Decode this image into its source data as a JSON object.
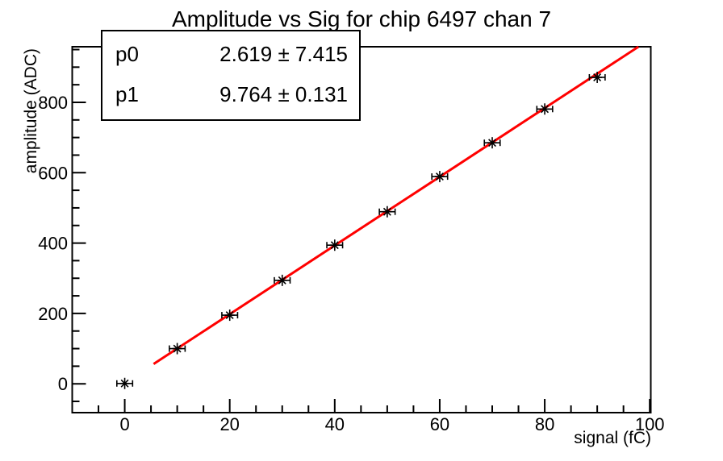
{
  "page": {
    "background": "#ffffff"
  },
  "header": {
    "title": "Amplitude vs Sig for chip 6497 chan 7"
  },
  "stats_box": {
    "rows": [
      {
        "label": "p0",
        "value": "2.619 ± 7.415"
      },
      {
        "label": "p1",
        "value": "9.764 ± 0.131"
      }
    ]
  },
  "chart_data": {
    "type": "scatter",
    "title": "Amplitude vs Sig for chip 6497 chan 7",
    "xlabel": "signal (fC)",
    "ylabel": "amplitude (ADC)",
    "xlim": [
      -10,
      100.2
    ],
    "ylim": [
      -82,
      958
    ],
    "x_major_ticks": [
      0,
      20,
      40,
      60,
      80,
      100
    ],
    "x_tick_labels": [
      "0",
      "20",
      "40",
      "60",
      "80",
      "100"
    ],
    "x_minor_step": 5,
    "y_major_ticks": [
      0,
      200,
      400,
      600,
      800
    ],
    "y_tick_labels": [
      "0",
      "200",
      "400",
      "600",
      "800"
    ],
    "y_minor_step": 50,
    "grid": false,
    "legend": false,
    "marker": "asterisk-with-x-error-bars",
    "colors": {
      "data": "#000000",
      "fit": "#ff0000",
      "frame": "#000000"
    },
    "series": [
      {
        "name": "data points",
        "type": "scatter",
        "x": [
          0,
          10,
          20,
          30,
          40,
          50,
          60,
          70,
          80,
          90
        ],
        "y": [
          1,
          100,
          195,
          294,
          394,
          489,
          589,
          685,
          781,
          871
        ],
        "x_err": 1.5
      },
      {
        "name": "linear fit",
        "type": "line",
        "fit": {
          "p0": 2.619,
          "p0_err": 7.415,
          "p1": 9.764,
          "p1_err": 0.131
        },
        "x_range": [
          5.5,
          100
        ]
      }
    ]
  }
}
